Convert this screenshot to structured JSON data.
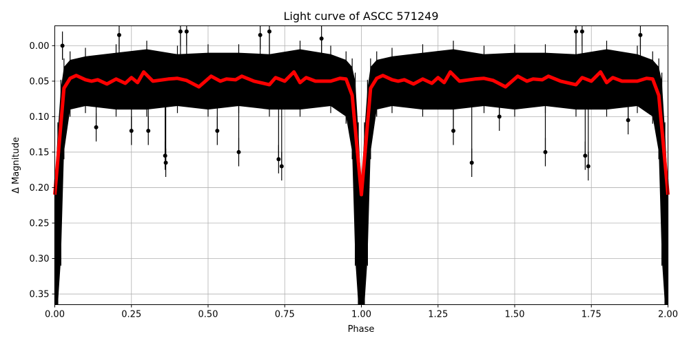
{
  "chart_data": {
    "type": "scatter",
    "title": "Light curve of ASCC 571249",
    "xlabel": "Phase",
    "ylabel": "Δ Magnitude",
    "xlim": [
      0,
      2
    ],
    "ylim": [
      -0.028,
      0.365
    ],
    "y_inverted": true,
    "grid": true,
    "x_ticks": [
      "0.00",
      "0.25",
      "0.50",
      "0.75",
      "1.00",
      "1.25",
      "1.50",
      "1.75",
      "2.00"
    ],
    "y_ticks": [
      "0.00",
      "0.05",
      "0.10",
      "0.15",
      "0.20",
      "0.25",
      "0.30",
      "0.35"
    ],
    "phase_cycles_shown": 2,
    "colors": {
      "observations": "#000000",
      "model": "#ff0000",
      "grid": "#b0b0b0"
    },
    "observations_envelope": {
      "phase": [
        0.0,
        0.01,
        0.02,
        0.03,
        0.05,
        0.1,
        0.2,
        0.3,
        0.4,
        0.5,
        0.6,
        0.7,
        0.8,
        0.9,
        0.95,
        0.97,
        0.98,
        0.99,
        1.0
      ],
      "bright": [
        0.2,
        0.12,
        0.06,
        0.03,
        0.02,
        0.015,
        0.01,
        0.005,
        0.012,
        0.01,
        0.01,
        0.012,
        0.005,
        0.012,
        0.02,
        0.03,
        0.05,
        0.12,
        0.2
      ],
      "faint": [
        0.365,
        0.365,
        0.3,
        0.15,
        0.09,
        0.085,
        0.09,
        0.09,
        0.085,
        0.09,
        0.085,
        0.09,
        0.09,
        0.085,
        0.1,
        0.15,
        0.3,
        0.365,
        0.365
      ]
    },
    "observations_outliers": [
      {
        "phase": 0.135,
        "mag": 0.115
      },
      {
        "phase": 0.21,
        "mag": -0.015
      },
      {
        "phase": 0.25,
        "mag": 0.12
      },
      {
        "phase": 0.305,
        "mag": 0.12
      },
      {
        "phase": 0.36,
        "mag": 0.155
      },
      {
        "phase": 0.362,
        "mag": 0.165
      },
      {
        "phase": 0.41,
        "mag": -0.02
      },
      {
        "phase": 0.43,
        "mag": -0.02
      },
      {
        "phase": 0.53,
        "mag": 0.12
      },
      {
        "phase": 0.6,
        "mag": 0.15
      },
      {
        "phase": 0.67,
        "mag": -0.015
      },
      {
        "phase": 0.7,
        "mag": -0.02
      },
      {
        "phase": 0.73,
        "mag": 0.16
      },
      {
        "phase": 0.74,
        "mag": 0.17
      },
      {
        "phase": 0.87,
        "mag": -0.01
      },
      {
        "phase": 0.025,
        "mag": 0.0
      },
      {
        "phase": 1.3,
        "mag": 0.12
      },
      {
        "phase": 1.36,
        "mag": 0.165
      },
      {
        "phase": 1.45,
        "mag": 0.1
      },
      {
        "phase": 1.6,
        "mag": 0.15
      },
      {
        "phase": 1.7,
        "mag": -0.02
      },
      {
        "phase": 1.72,
        "mag": -0.02
      },
      {
        "phase": 1.73,
        "mag": 0.155
      },
      {
        "phase": 1.74,
        "mag": 0.17
      },
      {
        "phase": 1.87,
        "mag": 0.105
      },
      {
        "phase": 1.91,
        "mag": -0.015
      }
    ],
    "model": {
      "phase": [
        0.0,
        0.01,
        0.02,
        0.03,
        0.05,
        0.07,
        0.1,
        0.12,
        0.14,
        0.17,
        0.2,
        0.23,
        0.25,
        0.27,
        0.29,
        0.32,
        0.37,
        0.4,
        0.43,
        0.47,
        0.51,
        0.54,
        0.56,
        0.59,
        0.61,
        0.65,
        0.7,
        0.72,
        0.75,
        0.78,
        0.8,
        0.82,
        0.85,
        0.9,
        0.93,
        0.95,
        0.97,
        0.985,
        1.0
      ],
      "mag": [
        0.21,
        0.16,
        0.11,
        0.06,
        0.046,
        0.042,
        0.048,
        0.05,
        0.048,
        0.054,
        0.047,
        0.053,
        0.045,
        0.052,
        0.037,
        0.05,
        0.047,
        0.046,
        0.049,
        0.058,
        0.043,
        0.05,
        0.047,
        0.048,
        0.043,
        0.05,
        0.055,
        0.045,
        0.05,
        0.037,
        0.052,
        0.045,
        0.05,
        0.05,
        0.046,
        0.047,
        0.07,
        0.14,
        0.21
      ]
    }
  }
}
